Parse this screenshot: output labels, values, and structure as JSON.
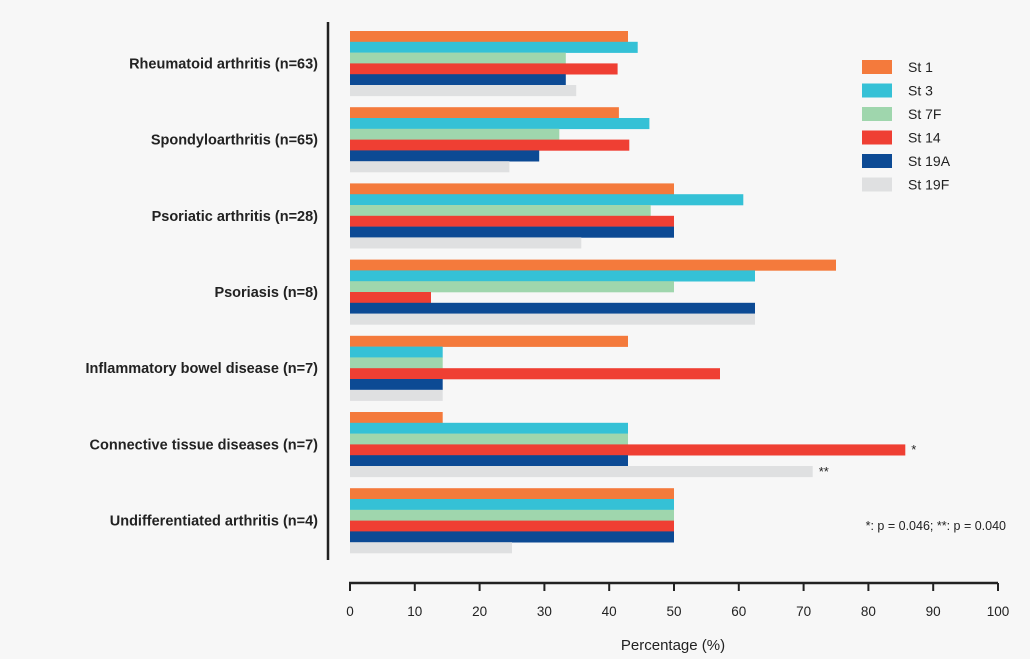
{
  "chart_data": {
    "type": "bar",
    "orientation": "horizontal",
    "categories": [
      "Rheumatoid arthritis (n=63)",
      "Spondyloarthritis (n=65)",
      "Psoriatic arthritis (n=28)",
      "Psoriasis (n=8)",
      "Inflammatory bowel disease (n=7)",
      "Connective tissue diseases (n=7)",
      "Undifferentiated arthritis (n=4)"
    ],
    "series": [
      {
        "name": "St 1",
        "color": "#f47a3c",
        "values": [
          42.9,
          41.5,
          50.0,
          75.0,
          42.9,
          14.3,
          50.0
        ]
      },
      {
        "name": "St 3",
        "color": "#35c1d6",
        "values": [
          44.4,
          46.2,
          60.7,
          62.5,
          14.3,
          42.9,
          50.0
        ]
      },
      {
        "name": "St 7F",
        "color": "#9fd6ad",
        "values": [
          33.3,
          32.3,
          46.4,
          50.0,
          14.3,
          42.9,
          50.0
        ]
      },
      {
        "name": "St 14",
        "color": "#ef3f33",
        "values": [
          41.3,
          43.1,
          50.0,
          12.5,
          57.1,
          85.7,
          50.0
        ]
      },
      {
        "name": "St 19A",
        "color": "#0c4a94",
        "values": [
          33.3,
          29.2,
          50.0,
          62.5,
          14.3,
          42.9,
          50.0
        ]
      },
      {
        "name": "St 19F",
        "color": "#dfe0e1",
        "values": [
          34.9,
          24.6,
          35.7,
          62.5,
          14.3,
          71.4,
          25.0
        ]
      }
    ],
    "xlabel": "Percentage (%)",
    "ylabel": "",
    "xlim": [
      0,
      100
    ],
    "xticks": [
      "0",
      "10",
      "20",
      "30",
      "40",
      "50",
      "60",
      "70",
      "80",
      "90",
      "100"
    ],
    "grid": false,
    "legend_position": "top-right",
    "significance_marks": [
      {
        "category_index": 5,
        "series_index": 3,
        "label": "*"
      },
      {
        "category_index": 5,
        "series_index": 5,
        "label": "**"
      }
    ],
    "annotation": "*: p = 0.046; **: p = 0.040"
  }
}
